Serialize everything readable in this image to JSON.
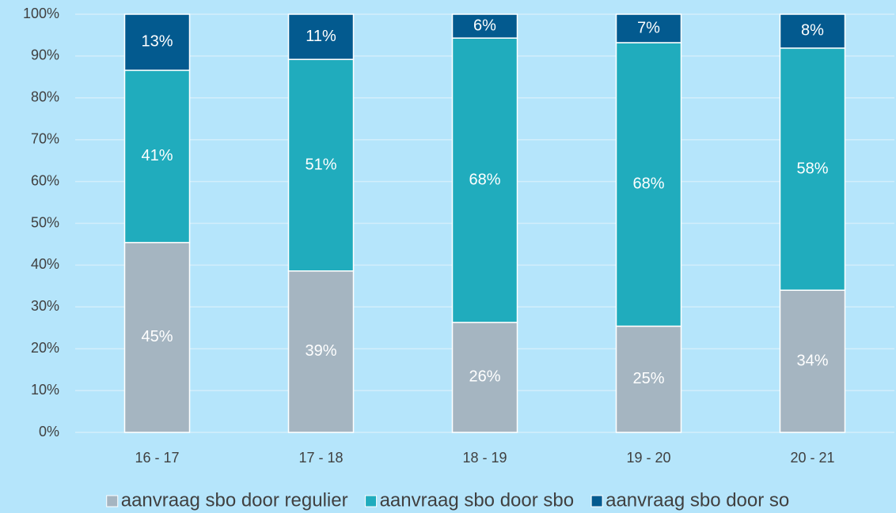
{
  "chart_data": {
    "type": "stacked_bar",
    "categories": [
      "16 - 17",
      "17 - 18",
      "18 - 19",
      "19 - 20",
      "20 - 21"
    ],
    "series": [
      {
        "name": "aanvraag sbo door regulier",
        "color": "#a5b5c1",
        "values": [
          45.4,
          38.6,
          26.3,
          25.4,
          34.0
        ],
        "value_labels": [
          "45%",
          "39%",
          "26%",
          "25%",
          "34%"
        ]
      },
      {
        "name": "aanvraag sbo door sbo",
        "color": "#20acbd",
        "values": [
          41.2,
          50.6,
          68.0,
          67.8,
          57.9
        ],
        "value_labels": [
          "41%",
          "51%",
          "68%",
          "68%",
          "58%"
        ]
      },
      {
        "name": "aanvraag sbo door so",
        "color": "#035a8f",
        "values": [
          13.4,
          10.8,
          5.7,
          6.8,
          8.1
        ],
        "value_labels": [
          "13%",
          "11%",
          "6%",
          "7%",
          "8%"
        ]
      }
    ],
    "ylim": [
      0,
      100
    ],
    "yticks": [
      {
        "value": 0,
        "label": "0%"
      },
      {
        "value": 10,
        "label": "10%"
      },
      {
        "value": 20,
        "label": "20%"
      },
      {
        "value": 30,
        "label": "30%"
      },
      {
        "value": 40,
        "label": "40%"
      },
      {
        "value": 50,
        "label": "50%"
      },
      {
        "value": 60,
        "label": "60%"
      },
      {
        "value": 70,
        "label": "70%"
      },
      {
        "value": 80,
        "label": "80%"
      },
      {
        "value": 90,
        "label": "90%"
      },
      {
        "value": 100,
        "label": "100%"
      }
    ],
    "grid": true,
    "legend": "bottom"
  }
}
